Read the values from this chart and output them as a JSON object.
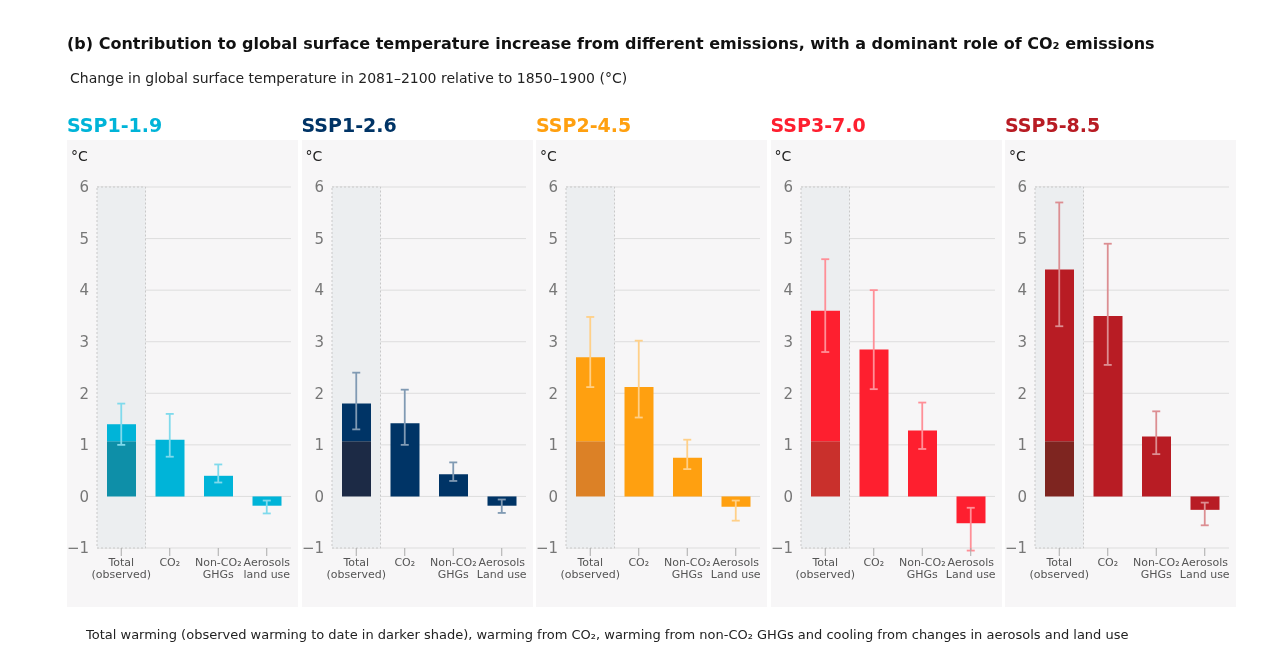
{
  "chart_data": [
    {
      "type": "bar",
      "stacked": true,
      "title": "SSP1-1.9",
      "ylabel": "°C",
      "categories": [
        "Total\n(observed)",
        "CO₂",
        "Non-CO₂\nGHGs",
        "Aerosols\nland use"
      ],
      "annotations": [
        "(b) Contribution to global surface temperature increase from different emissions, with a dominant role of CO₂ emissions",
        "Change in global surface temperature in 2081–2100 relative to 1850–1900 (°C)",
        "Total warming (observed warming to date in darker shade), warming from CO₂, warming from non-CO₂ GHGs and cooling from changes in aerosols and land use"
      ],
      "ylim": [
        -1,
        6
      ],
      "yticks": [
        -1,
        0,
        1,
        2,
        3,
        4,
        5,
        6
      ],
      "grid": "y",
      "bands": [
        {
          "axis": "x",
          "from": "Total\n(observed)",
          "to": "Total\n(observed)",
          "color": "#eceef0"
        }
      ],
      "series": [
        {
          "color": "#0e8fa8",
          "values": [
            1.07,
            null,
            null,
            null
          ]
        },
        {
          "color": "#00b4d8",
          "values": [
            0.33,
            1.1,
            0.4,
            -0.18
          ],
          "errors": [
            [
              1.0,
              1.8
            ],
            [
              0.77,
              1.6
            ],
            [
              0.27,
              0.62
            ],
            [
              -0.33,
              -0.08
            ]
          ]
        }
      ]
    },
    {
      "type": "bar",
      "stacked": true,
      "title": "SSP1-2.6",
      "ylabel": "°C",
      "categories": [
        "Total\n(observed)",
        "CO₂",
        "Non-CO₂\nGHGs",
        "Aerosols\nLand use"
      ],
      "ylim": [
        -1,
        6
      ],
      "yticks": [
        -1,
        0,
        1,
        2,
        3,
        4,
        5,
        6
      ],
      "grid": "y",
      "bands": [
        {
          "axis": "x",
          "from": "Total\n(observed)",
          "to": "Total\n(observed)",
          "color": "#eceef0"
        }
      ],
      "series": [
        {
          "color": "#1c2a45",
          "values": [
            1.07,
            null,
            null,
            null
          ]
        },
        {
          "color": "#003466",
          "values": [
            0.73,
            1.42,
            0.43,
            -0.18
          ],
          "errors": [
            [
              1.3,
              2.4
            ],
            [
              1.0,
              2.07
            ],
            [
              0.3,
              0.66
            ],
            [
              -0.32,
              -0.06
            ]
          ]
        }
      ]
    },
    {
      "type": "bar",
      "stacked": true,
      "title": "SSP2-4.5",
      "ylabel": "°C",
      "categories": [
        "Total\n(observed)",
        "CO₂",
        "Non-CO₂\nGHGs",
        "Aerosols\nLand use"
      ],
      "ylim": [
        -1,
        6
      ],
      "yticks": [
        -1,
        0,
        1,
        2,
        3,
        4,
        5,
        6
      ],
      "grid": "y",
      "bands": [
        {
          "axis": "x",
          "from": "Total\n(observed)",
          "to": "Total\n(observed)",
          "color": "#eceef0"
        }
      ],
      "series": [
        {
          "color": "#dc8126",
          "values": [
            1.07,
            null,
            null,
            null
          ]
        },
        {
          "color": "#ffa010",
          "values": [
            1.63,
            2.12,
            0.75,
            -0.2
          ],
          "errors": [
            [
              2.12,
              3.48
            ],
            [
              1.53,
              3.02
            ],
            [
              0.53,
              1.1
            ],
            [
              -0.47,
              -0.08
            ]
          ]
        }
      ]
    },
    {
      "type": "bar",
      "stacked": true,
      "title": "SSP3-7.0",
      "ylabel": "°C",
      "categories": [
        "Total\n(observed)",
        "CO₂",
        "Non-CO₂\nGHGs",
        "Aerosols\nLand use"
      ],
      "ylim": [
        -1,
        6
      ],
      "yticks": [
        -1,
        0,
        1,
        2,
        3,
        4,
        5,
        6
      ],
      "grid": "y",
      "bands": [
        {
          "axis": "x",
          "from": "Total\n(observed)",
          "to": "Total\n(observed)",
          "color": "#eceef0"
        }
      ],
      "series": [
        {
          "color": "#c9302c",
          "values": [
            1.07,
            null,
            null,
            null
          ]
        },
        {
          "color": "#fe1f2f",
          "values": [
            2.53,
            2.85,
            1.28,
            -0.52
          ],
          "errors": [
            [
              2.8,
              4.6
            ],
            [
              2.08,
              4.0
            ],
            [
              0.92,
              1.82
            ],
            [
              -1.05,
              -0.22
            ]
          ]
        }
      ]
    },
    {
      "type": "bar",
      "stacked": true,
      "title": "SSP5-8.5",
      "ylabel": "°C",
      "categories": [
        "Total\n(observed)",
        "CO₂",
        "Non-CO₂\nGHGs",
        "Aerosols\nLand use"
      ],
      "ylim": [
        -1,
        6
      ],
      "yticks": [
        -1,
        0,
        1,
        2,
        3,
        4,
        5,
        6
      ],
      "grid": "y",
      "bands": [
        {
          "axis": "x",
          "from": "Total\n(observed)",
          "to": "Total\n(observed)",
          "color": "#eceef0"
        }
      ],
      "series": [
        {
          "color": "#7e2520",
          "values": [
            1.07,
            null,
            null,
            null
          ]
        },
        {
          "color": "#b81c24",
          "values": [
            3.33,
            3.5,
            1.16,
            -0.26
          ],
          "errors": [
            [
              3.3,
              5.7
            ],
            [
              2.55,
              4.9
            ],
            [
              0.82,
              1.65
            ],
            [
              -0.56,
              -0.12
            ]
          ]
        }
      ]
    }
  ]
}
